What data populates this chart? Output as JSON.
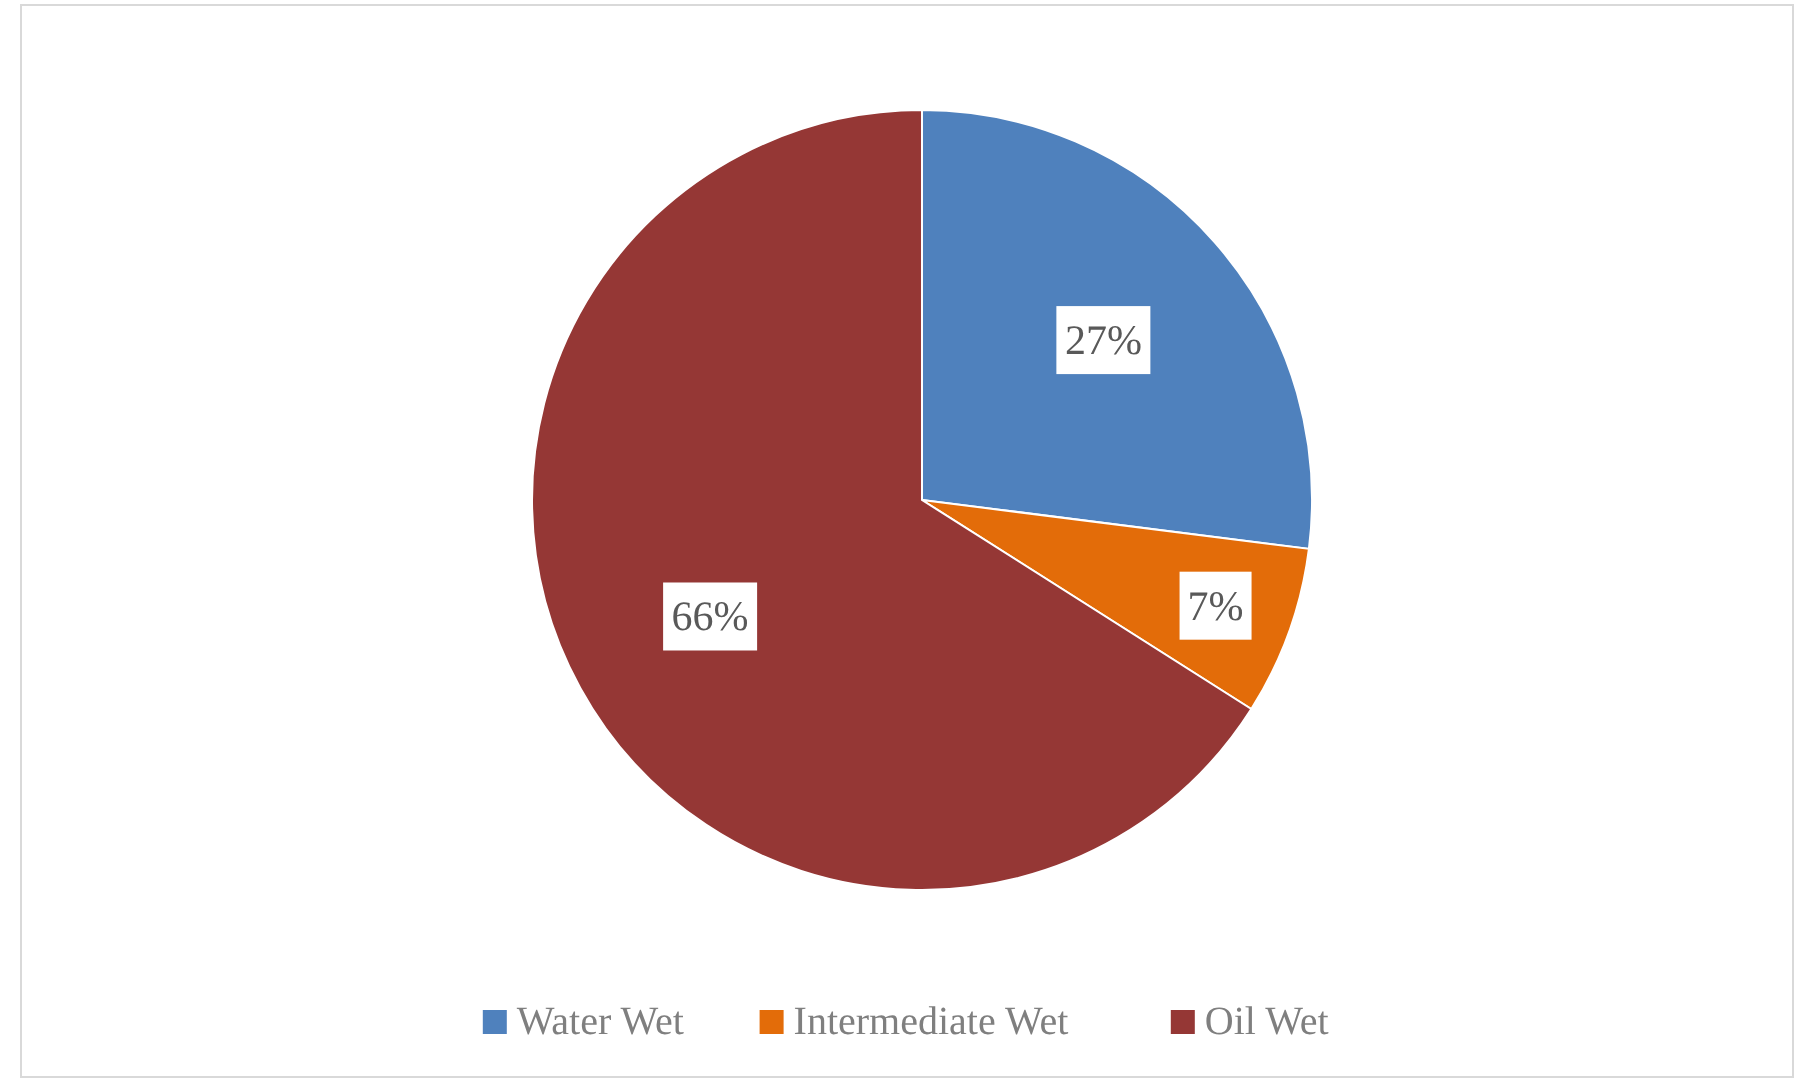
{
  "chart_data": {
    "type": "pie",
    "categories": [
      "Water Wet",
      "Intermediate Wet",
      "Oil Wet"
    ],
    "values": [
      27,
      7,
      66
    ],
    "colors": [
      "#4f81bd",
      "#e36c09",
      "#953735"
    ],
    "value_labels": [
      "27%",
      "7%",
      "66%"
    ],
    "legend": "bottom"
  }
}
